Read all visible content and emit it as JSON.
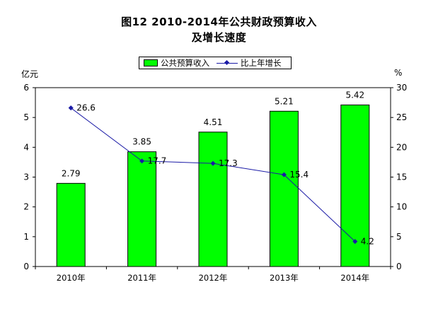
{
  "title_line1": "图12  2010-2014年公共财政预算收入",
  "title_line2": "及增长速度",
  "legend": {
    "bar_label": "公共预算收入",
    "line_label": "比上年增长"
  },
  "y_left_unit": "亿元",
  "y_right_unit": "%",
  "colors": {
    "bar": "#00ff00",
    "line": "#1a1aa6",
    "border": "#000000"
  },
  "chart_data": {
    "type": "bar",
    "categories": [
      "2010年",
      "2011年",
      "2012年",
      "2013年",
      "2014年"
    ],
    "series": [
      {
        "name": "公共预算收入",
        "type": "bar",
        "axis": "left",
        "values": [
          2.79,
          3.85,
          4.51,
          5.21,
          5.42
        ],
        "labels": [
          "2.79",
          "3.85",
          "4.51",
          "5.21",
          "5.42"
        ]
      },
      {
        "name": "比上年增长",
        "type": "line",
        "axis": "right",
        "values": [
          26.6,
          17.7,
          17.3,
          15.4,
          4.2
        ],
        "labels": [
          "26.6",
          "17.7",
          "17.3",
          "15.4",
          "4.2"
        ]
      }
    ],
    "ylim_left": [
      0,
      6
    ],
    "yticks_left": [
      "0",
      "1",
      "2",
      "3",
      "4",
      "5",
      "6"
    ],
    "ylim_right": [
      0,
      30
    ],
    "yticks_right": [
      "0",
      "5",
      "10",
      "15",
      "20",
      "25",
      "30"
    ],
    "grid": false,
    "legend_position": "top-center"
  }
}
